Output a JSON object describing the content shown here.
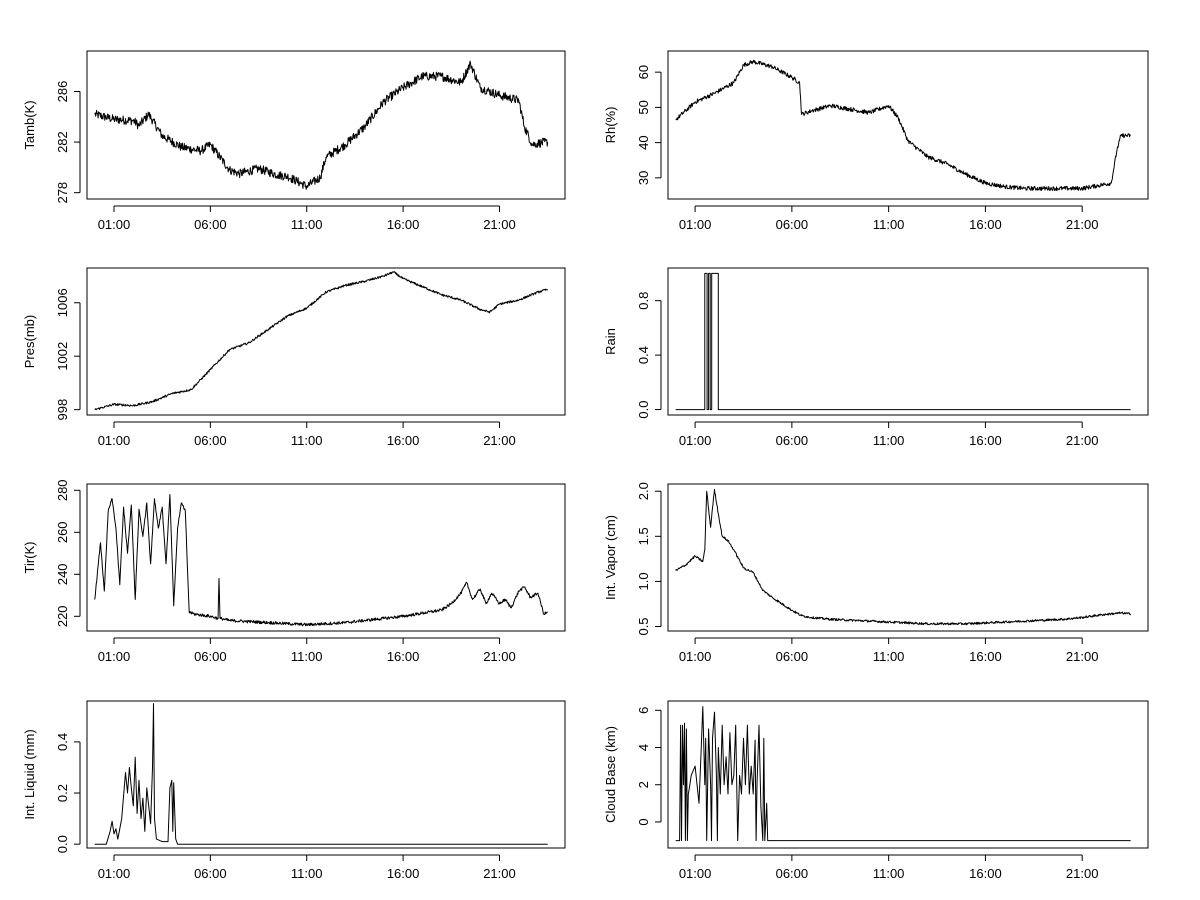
{
  "chart_data": [
    {
      "type": "line",
      "ylabel": "Tamb(K)",
      "xticks": [
        "01:00",
        "06:00",
        "11:00",
        "16:00",
        "21:00"
      ],
      "xtick_hours": [
        1,
        6,
        11,
        16,
        21
      ],
      "xlim_hours": [
        -0.4,
        24.4
      ],
      "yticks": [
        278,
        282,
        286
      ],
      "ylim": [
        277.5,
        289.2
      ],
      "noise": 0.35,
      "x": [
        0,
        1,
        2,
        2.3,
        2.8,
        3.5,
        4.5,
        5.5,
        6,
        7,
        7.5,
        8.5,
        9.5,
        10,
        10.5,
        11,
        11.7,
        12,
        13,
        14,
        15,
        16,
        17,
        18,
        19,
        19.5,
        20,
        21,
        22,
        22.3,
        22.7,
        23,
        23.5
      ],
      "y": [
        284.2,
        283.8,
        283.7,
        283.3,
        284.2,
        282.5,
        281.6,
        281.3,
        281.8,
        279.8,
        279.5,
        279.9,
        279.4,
        279.3,
        278.9,
        278.5,
        279.2,
        280.8,
        281.8,
        283.2,
        285.2,
        286.3,
        287.2,
        287.2,
        286.7,
        288.2,
        286.3,
        285.7,
        285.3,
        283.2,
        281.8,
        281.9,
        282.0
      ]
    },
    {
      "type": "line",
      "ylabel": "Rh(%)",
      "xticks": [
        "01:00",
        "06:00",
        "11:00",
        "16:00",
        "21:00"
      ],
      "xtick_hours": [
        1,
        6,
        11,
        16,
        21
      ],
      "xlim_hours": [
        -0.4,
        24.4
      ],
      "yticks": [
        30,
        40,
        50,
        60
      ],
      "ylim": [
        24,
        66
      ],
      "noise": 0.6,
      "x": [
        0,
        1,
        2,
        3,
        3.5,
        4,
        5,
        6,
        6.4,
        6.5,
        7,
        8,
        9,
        10,
        11,
        11.5,
        12,
        13,
        14,
        15,
        16,
        17,
        18,
        19,
        20,
        21,
        22,
        22.5,
        22.8,
        23,
        23.5
      ],
      "y": [
        46.5,
        51.5,
        54,
        57,
        62,
        63,
        61.5,
        58.5,
        57,
        48,
        49,
        50.5,
        49.5,
        48.5,
        50.5,
        47,
        40.5,
        36,
        34,
        31,
        28.5,
        27.5,
        27,
        27,
        27,
        27,
        28,
        28.5,
        38,
        42,
        42
      ]
    },
    {
      "type": "line",
      "ylabel": "Pres(mb)",
      "xticks": [
        "01:00",
        "06:00",
        "11:00",
        "16:00",
        "21:00"
      ],
      "xtick_hours": [
        1,
        6,
        11,
        16,
        21
      ],
      "xlim_hours": [
        -0.4,
        24.4
      ],
      "yticks": [
        998,
        1002,
        1006
      ],
      "ylim": [
        997.6,
        1008.6
      ],
      "noise": 0.08,
      "x": [
        0,
        1,
        2,
        3,
        4,
        5,
        6,
        7,
        8,
        9,
        10,
        11,
        12,
        13,
        14,
        15,
        15.5,
        16,
        17,
        18,
        19,
        20,
        20.5,
        21,
        22,
        23,
        23.5
      ],
      "y": [
        998.0,
        998.4,
        998.3,
        998.6,
        999.2,
        999.5,
        1001.0,
        1002.5,
        1003.0,
        1004.0,
        1005.0,
        1005.6,
        1006.8,
        1007.3,
        1007.6,
        1008.0,
        1008.3,
        1007.8,
        1007.2,
        1006.6,
        1006.2,
        1005.5,
        1005.3,
        1005.9,
        1006.2,
        1006.8,
        1007.0
      ]
    },
    {
      "type": "line",
      "ylabel": "Rain",
      "xticks": [
        "01:00",
        "06:00",
        "11:00",
        "16:00",
        "21:00"
      ],
      "xtick_hours": [
        1,
        6,
        11,
        16,
        21
      ],
      "xlim_hours": [
        -0.4,
        24.4
      ],
      "yticks": [
        0.0,
        0.4,
        0.8
      ],
      "ytick_labels": [
        "0.0",
        "0.4",
        "0.8"
      ],
      "ylim": [
        -0.04,
        1.04
      ],
      "noise": 0,
      "x": [
        0,
        1.5,
        1.5,
        1.62,
        1.62,
        1.7,
        1.7,
        1.78,
        1.78,
        1.86,
        1.86,
        2.2,
        2.2,
        2.45,
        2.45,
        23.5
      ],
      "y": [
        0,
        0,
        1,
        1,
        0,
        0,
        1,
        1,
        0,
        0,
        1,
        1,
        0,
        0,
        0,
        0
      ]
    },
    {
      "type": "line",
      "ylabel": "Tir(K)",
      "xticks": [
        "01:00",
        "06:00",
        "11:00",
        "16:00",
        "21:00"
      ],
      "xtick_hours": [
        1,
        6,
        11,
        16,
        21
      ],
      "xlim_hours": [
        -0.4,
        24.4
      ],
      "yticks": [
        220,
        240,
        260,
        280
      ],
      "ylim": [
        213,
        283
      ],
      "noise": 0.7,
      "x": [
        0,
        0.3,
        0.5,
        0.7,
        0.9,
        1.1,
        1.3,
        1.5,
        1.7,
        1.9,
        2.1,
        2.3,
        2.5,
        2.7,
        2.9,
        3.1,
        3.3,
        3.5,
        3.7,
        3.9,
        4.1,
        4.3,
        4.5,
        4.7,
        4.9,
        5.2,
        6,
        6.4,
        6.45,
        6.5,
        7,
        8,
        9,
        10,
        11,
        12,
        13,
        14,
        15,
        16,
        17,
        18,
        18.5,
        19,
        19.3,
        19.6,
        20,
        20.3,
        20.6,
        21,
        21.3,
        21.6,
        22,
        22.3,
        22.6,
        23,
        23.3,
        23.5
      ],
      "y": [
        228,
        255,
        232,
        270,
        276,
        262,
        235,
        272,
        250,
        273,
        228,
        271,
        258,
        274,
        245,
        276,
        262,
        272,
        245,
        278,
        225,
        262,
        274,
        270,
        222,
        221,
        220,
        219,
        238,
        219,
        218,
        217.5,
        217,
        216.5,
        216,
        216.5,
        217,
        218,
        219,
        220,
        221.5,
        223,
        226,
        231,
        236,
        228,
        233,
        226,
        231,
        226,
        228,
        224,
        232,
        234,
        229,
        231,
        221,
        222
      ]
    },
    {
      "type": "line",
      "ylabel": "Int. Vapor (cm)",
      "xticks": [
        "01:00",
        "06:00",
        "11:00",
        "16:00",
        "21:00"
      ],
      "xtick_hours": [
        1,
        6,
        11,
        16,
        21
      ],
      "xlim_hours": [
        -0.4,
        24.4
      ],
      "yticks": [
        0.5,
        1.0,
        1.5,
        2.0
      ],
      "ytick_labels": [
        "0.5",
        "1.0",
        "1.5",
        "2.0"
      ],
      "ylim": [
        0.45,
        2.08
      ],
      "noise": 0.012,
      "x": [
        0,
        0.5,
        1,
        1.4,
        1.5,
        1.6,
        1.8,
        2.0,
        2.2,
        2.4,
        2.7,
        3,
        3.5,
        4,
        4.5,
        5,
        5.5,
        6,
        6.5,
        7,
        8,
        9,
        10,
        11,
        12,
        13,
        14,
        15,
        16,
        17,
        18,
        19,
        20,
        21,
        22,
        23,
        23.5
      ],
      "y": [
        1.12,
        1.18,
        1.28,
        1.22,
        1.35,
        2.0,
        1.6,
        2.02,
        1.75,
        1.5,
        1.45,
        1.35,
        1.15,
        1.1,
        0.9,
        0.82,
        0.75,
        0.68,
        0.62,
        0.6,
        0.58,
        0.57,
        0.56,
        0.55,
        0.54,
        0.53,
        0.53,
        0.53,
        0.54,
        0.55,
        0.56,
        0.57,
        0.58,
        0.6,
        0.63,
        0.65,
        0.64
      ]
    },
    {
      "type": "line",
      "ylabel": "Int. Liquid (mm)",
      "xticks": [
        "01:00",
        "06:00",
        "11:00",
        "16:00",
        "21:00"
      ],
      "xtick_hours": [
        1,
        6,
        11,
        16,
        21
      ],
      "xlim_hours": [
        -0.4,
        24.4
      ],
      "yticks": [
        0.0,
        0.2,
        0.4
      ],
      "ytick_labels": [
        "0.0",
        "0.2",
        "0.4"
      ],
      "ylim": [
        -0.015,
        0.56
      ],
      "noise": 0,
      "x": [
        0,
        0.6,
        0.8,
        0.9,
        1.0,
        1.1,
        1.2,
        1.4,
        1.6,
        1.7,
        1.8,
        1.9,
        2.0,
        2.1,
        2.2,
        2.3,
        2.4,
        2.5,
        2.6,
        2.7,
        2.8,
        2.9,
        3.0,
        3.05,
        3.1,
        3.2,
        3.5,
        3.8,
        3.9,
        4.0,
        4.05,
        4.1,
        4.2,
        4.3,
        23.5
      ],
      "y": [
        0,
        0,
        0.05,
        0.09,
        0.04,
        0.06,
        0.02,
        0.1,
        0.28,
        0.2,
        0.3,
        0.22,
        0.15,
        0.34,
        0.12,
        0.25,
        0.1,
        0.18,
        0.05,
        0.22,
        0.15,
        0.08,
        0.3,
        0.55,
        0.1,
        0.02,
        0.01,
        0.01,
        0.22,
        0.25,
        0.05,
        0.24,
        0.02,
        0,
        0
      ]
    },
    {
      "type": "line",
      "ylabel": "Cloud Base (km)",
      "xticks": [
        "01:00",
        "06:00",
        "11:00",
        "16:00",
        "21:00"
      ],
      "xtick_hours": [
        1,
        6,
        11,
        16,
        21
      ],
      "xlim_hours": [
        -0.4,
        24.4
      ],
      "yticks": [
        0,
        2,
        4,
        6
      ],
      "ylim": [
        -1.4,
        6.5
      ],
      "noise": 0,
      "x": [
        0,
        0.2,
        0.25,
        0.3,
        0.35,
        0.4,
        0.45,
        0.5,
        0.55,
        0.6,
        0.65,
        0.7,
        0.8,
        1.0,
        1.2,
        1.3,
        1.4,
        1.5,
        1.55,
        1.6,
        1.7,
        1.8,
        1.85,
        1.9,
        2.0,
        2.1,
        2.15,
        2.2,
        2.3,
        2.4,
        2.5,
        2.6,
        2.7,
        2.8,
        2.9,
        3.0,
        3.1,
        3.2,
        3.3,
        3.4,
        3.5,
        3.6,
        3.7,
        3.8,
        3.9,
        4.0,
        4.1,
        4.15,
        4.2,
        4.3,
        4.4,
        4.5,
        4.55,
        4.6,
        4.7,
        4.75,
        4.8,
        23.5
      ],
      "y": [
        -1,
        -1,
        5.2,
        -1,
        5.2,
        2.0,
        5.3,
        -1,
        5.0,
        -1,
        1.5,
        1.8,
        2.5,
        3.0,
        1.0,
        3.5,
        6.2,
        2.0,
        4.5,
        -1,
        5.0,
        2.0,
        -1,
        4.5,
        5.9,
        2.5,
        -1,
        4.0,
        1.5,
        5.2,
        2.0,
        3.5,
        1.5,
        4.8,
        2.0,
        2.5,
        5.2,
        -1,
        2.5,
        1.5,
        4.5,
        2.0,
        5.2,
        1.5,
        3.0,
        1.5,
        4.4,
        -1,
        2.0,
        5.2,
        0.8,
        -1,
        4.5,
        -1,
        1.0,
        -1,
        -1,
        -1
      ]
    }
  ]
}
